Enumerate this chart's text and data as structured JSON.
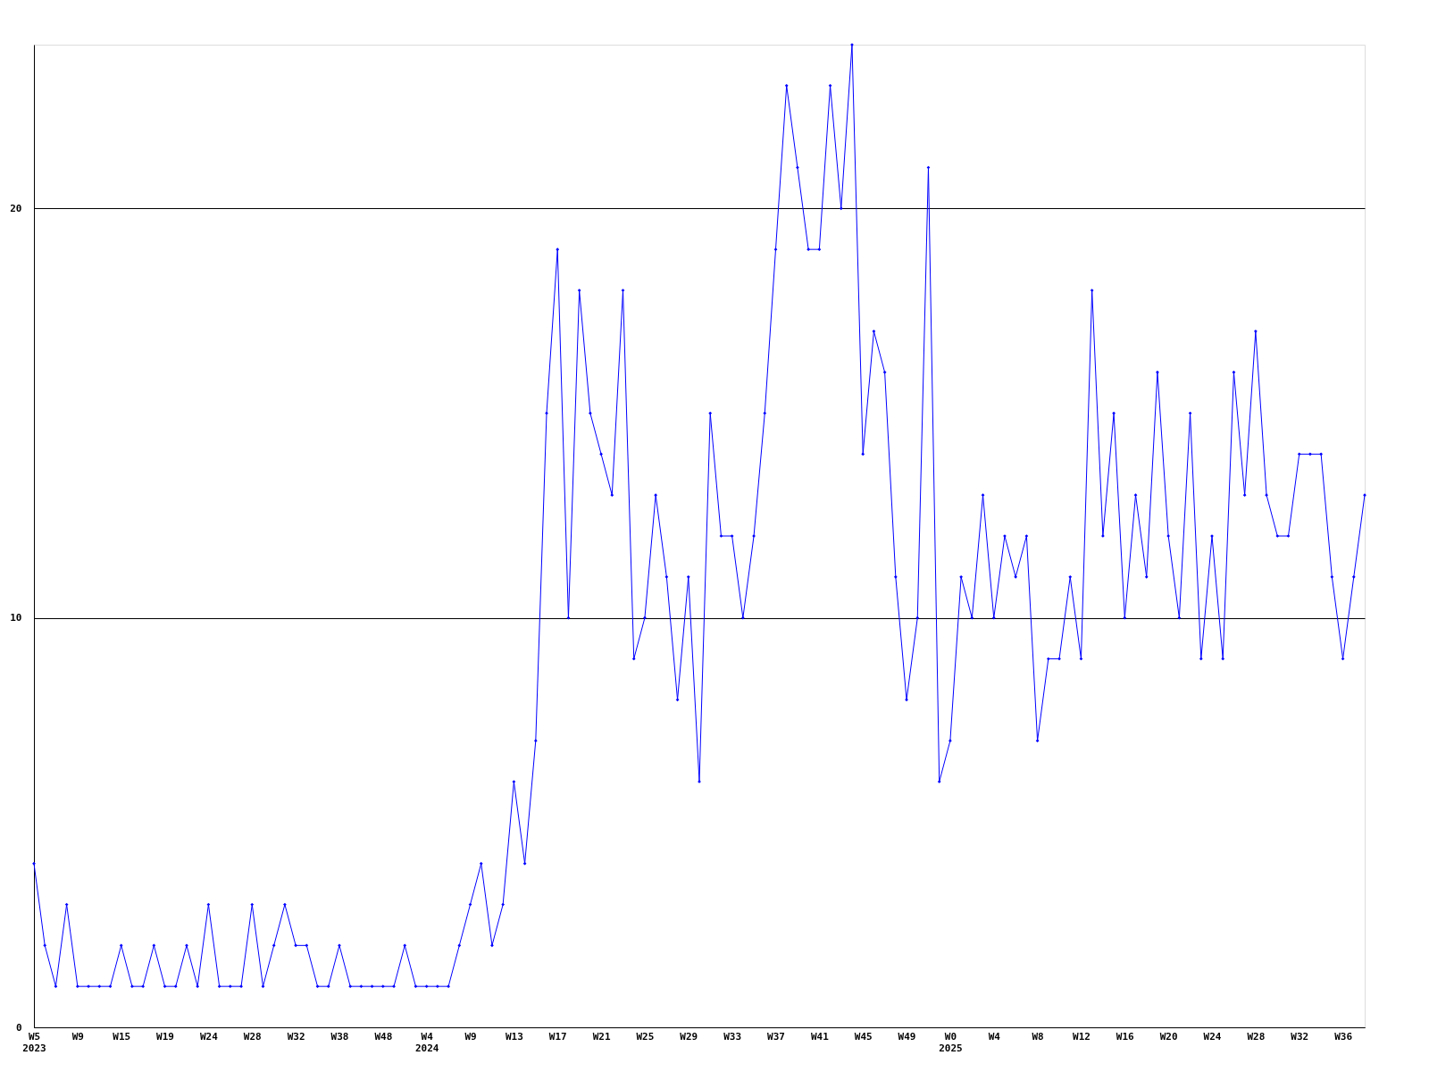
{
  "chart_data": {
    "type": "line",
    "categories": [
      "W5\n2023",
      null,
      null,
      null,
      "W9",
      null,
      null,
      null,
      "W15",
      null,
      null,
      null,
      "W19",
      null,
      null,
      null,
      "W24",
      null,
      null,
      null,
      "W28",
      null,
      null,
      null,
      "W32",
      null,
      null,
      null,
      "W38",
      null,
      null,
      null,
      "W48",
      null,
      null,
      null,
      "W4\n2024",
      null,
      null,
      null,
      "W9",
      null,
      null,
      null,
      "W13",
      null,
      null,
      null,
      "W17",
      null,
      null,
      null,
      "W21",
      null,
      null,
      null,
      "W25",
      null,
      null,
      null,
      "W29",
      null,
      null,
      null,
      "W33",
      null,
      null,
      null,
      "W37",
      null,
      null,
      null,
      "W41",
      null,
      null,
      null,
      "W45",
      null,
      null,
      null,
      "W49",
      null,
      null,
      null,
      "W0\n2025",
      null,
      null,
      null,
      "W4",
      null,
      null,
      null,
      "W8",
      null,
      null,
      null,
      "W12",
      null,
      null,
      null,
      "W16",
      null,
      null,
      null,
      "W20",
      null,
      null,
      null,
      "W24",
      null,
      null,
      null,
      "W28",
      null,
      null,
      null,
      "W32",
      null,
      null,
      null,
      "W36",
      null,
      null
    ],
    "series": [
      {
        "color": "#0000ff",
        "values": [
          4,
          2,
          1,
          3,
          1,
          1,
          1,
          1,
          2,
          1,
          1,
          2,
          1,
          1,
          2,
          1,
          3,
          1,
          1,
          1,
          3,
          1,
          2,
          3,
          2,
          2,
          1,
          1,
          2,
          1,
          1,
          1,
          1,
          1,
          2,
          1,
          1,
          1,
          1,
          2,
          3,
          4,
          2,
          3,
          6,
          4,
          7,
          15,
          19,
          10,
          18,
          15,
          14,
          13,
          18,
          9,
          10,
          13,
          11,
          8,
          11,
          6,
          15,
          12,
          12,
          10,
          12,
          15,
          19,
          23,
          21,
          19,
          19,
          23,
          20,
          24,
          14,
          17,
          16,
          11,
          8,
          10,
          21,
          6,
          7,
          11,
          10,
          13,
          10,
          12,
          11,
          12,
          7,
          9,
          9,
          11,
          9,
          18,
          12,
          15,
          10,
          13,
          11,
          16,
          12,
          10,
          15,
          9,
          12,
          9,
          16,
          13,
          17,
          13,
          12,
          12,
          14,
          14,
          14,
          11,
          9,
          11,
          13
        ]
      }
    ],
    "ylim": [
      0,
      24
    ],
    "yticks": [
      0,
      10,
      20
    ],
    "grid": "y",
    "marker": "diamond",
    "line_style": "solid"
  }
}
